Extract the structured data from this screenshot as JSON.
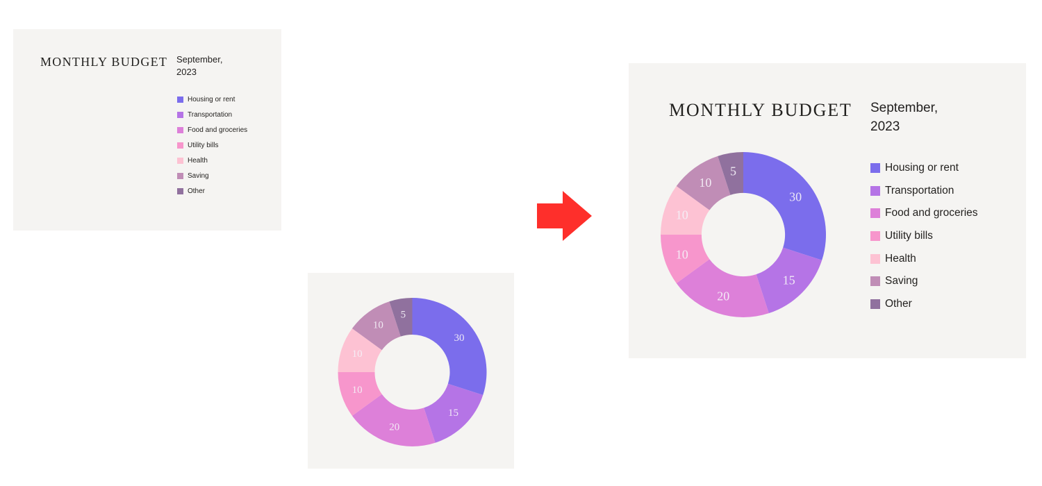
{
  "budget": {
    "title": "MONTHLY BUDGET",
    "date_line1": "September,",
    "date_line2": "2023"
  },
  "chart_data": {
    "type": "donut",
    "title": "MONTHLY BUDGET",
    "subtitle": "September, 2023",
    "categories": [
      "Housing or rent",
      "Transportation",
      "Food and groceries",
      "Utility bills",
      "Health",
      "Saving",
      "Other"
    ],
    "values": [
      30,
      15,
      20,
      10,
      10,
      10,
      5
    ],
    "colors": [
      "#7b6dec",
      "#b574e6",
      "#dd80d9",
      "#f796cc",
      "#fdc2d3",
      "#c08db6",
      "#90719e"
    ],
    "value_labels": [
      "30",
      "15",
      "20",
      "10",
      "10",
      "10",
      "5"
    ],
    "start_angle_deg": 0,
    "direction": "clockwise",
    "inner_radius_ratio": 0.505,
    "label_radius_ratio": 0.78,
    "label_color": "#f5f1f8",
    "legend_position": "right",
    "total": 100
  },
  "arrow": {
    "color": "#fe2f2b"
  },
  "theme": {
    "page_bg": "#ffffff",
    "card_bg": "#f5f4f2",
    "text_dark": "#232120"
  }
}
